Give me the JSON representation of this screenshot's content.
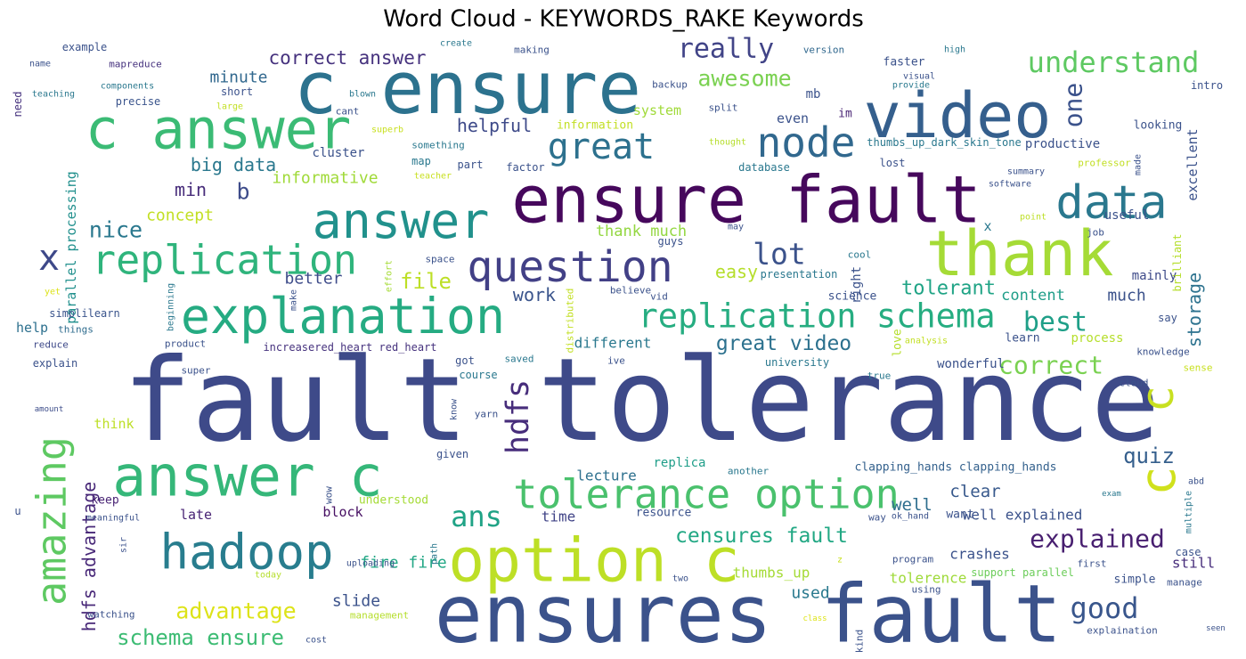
{
  "chart_data": {
    "type": "wordcloud",
    "title": "Word Cloud - KEYWORDS_RAKE Keywords",
    "words": [
      {
        "text": "fault tolerance",
        "color": "#3e4a89"
      },
      {
        "text": "ensures fault",
        "color": "#3b528b"
      },
      {
        "text": "ensure fault",
        "color": "#46085c"
      },
      {
        "text": "c ensure",
        "color": "#2c728e"
      },
      {
        "text": "video",
        "color": "#355f8d"
      },
      {
        "text": "thank",
        "color": "#a5db36"
      },
      {
        "text": "c answer",
        "color": "#3bbb75"
      },
      {
        "text": "answer c",
        "color": "#35b779"
      },
      {
        "text": "option c",
        "color": "#bddf26"
      },
      {
        "text": "explanation",
        "color": "#25ab82"
      },
      {
        "text": "answer",
        "color": "#21918c"
      },
      {
        "text": "replication",
        "color": "#2fb47c"
      },
      {
        "text": "hadoop",
        "color": "#287d8e"
      },
      {
        "text": "question",
        "color": "#424086"
      },
      {
        "text": "data",
        "color": "#2a788e"
      },
      {
        "text": "node",
        "color": "#31688e"
      },
      {
        "text": "great",
        "color": "#2d718e"
      },
      {
        "text": "replication schema",
        "color": "#26ad81"
      },
      {
        "text": "tolerance option",
        "color": "#4ac16d"
      },
      {
        "text": "amazing",
        "color": "#5ec962"
      },
      {
        "text": "hdfs",
        "color": "#472d7b"
      },
      {
        "text": "c",
        "color": "#c8e020"
      },
      {
        "text": "c",
        "color": "#d0e11c"
      },
      {
        "text": "x",
        "color": "#3e4989"
      },
      {
        "text": "lot",
        "color": "#3b528b"
      },
      {
        "text": "really",
        "color": "#414487"
      },
      {
        "text": "understand",
        "color": "#5ec962"
      },
      {
        "text": "one",
        "color": "#3b528b"
      },
      {
        "text": "correct answer",
        "color": "#46327e"
      },
      {
        "text": "awesome",
        "color": "#7ad151"
      },
      {
        "text": "minute",
        "color": "#31688e"
      },
      {
        "text": "helpful",
        "color": "#3e4a89"
      },
      {
        "text": "big data",
        "color": "#2a788e"
      },
      {
        "text": "informative",
        "color": "#a0da39"
      },
      {
        "text": "min",
        "color": "#472c7a"
      },
      {
        "text": "b",
        "color": "#3e4c8a"
      },
      {
        "text": "nice",
        "color": "#2a788e"
      },
      {
        "text": "concept",
        "color": "#c2df23"
      },
      {
        "text": "file",
        "color": "#bddf26"
      },
      {
        "text": "better",
        "color": "#3e4c8a"
      },
      {
        "text": "work",
        "color": "#3a548c"
      },
      {
        "text": "great video",
        "color": "#2c718e"
      },
      {
        "text": "best",
        "color": "#1f9f88"
      },
      {
        "text": "tolerant",
        "color": "#20a486"
      },
      {
        "text": "content",
        "color": "#1f9e89"
      },
      {
        "text": "much",
        "color": "#3b528b"
      },
      {
        "text": "storage",
        "color": "#2c728e"
      },
      {
        "text": "mainly",
        "color": "#3e4a89"
      },
      {
        "text": "correct",
        "color": "#7ad151"
      },
      {
        "text": "easy",
        "color": "#b5de2b"
      },
      {
        "text": "thank much",
        "color": "#93d741"
      },
      {
        "text": "ans",
        "color": "#20a386"
      },
      {
        "text": "quiz",
        "color": "#355f8d"
      },
      {
        "text": "explained",
        "color": "#481f70"
      },
      {
        "text": "well",
        "color": "#2e6e8e"
      },
      {
        "text": "clear",
        "color": "#38598c"
      },
      {
        "text": "well explained",
        "color": "#3b528b"
      },
      {
        "text": "censures fault",
        "color": "#22a884"
      },
      {
        "text": "good",
        "color": "#39568c"
      },
      {
        "text": "crashes",
        "color": "#3b528b"
      },
      {
        "text": "still",
        "color": "#472d7b"
      },
      {
        "text": "tolerence",
        "color": "#9fda3a"
      },
      {
        "text": "thumbs_up",
        "color": "#a5db36"
      },
      {
        "text": "used",
        "color": "#29798e"
      },
      {
        "text": "fire fire",
        "color": "#22a785"
      },
      {
        "text": "slide",
        "color": "#3b528b"
      },
      {
        "text": "advantage",
        "color": "#dde318"
      },
      {
        "text": "schema ensure",
        "color": "#3dbc74"
      },
      {
        "text": "hdfs advantage",
        "color": "#482878"
      },
      {
        "text": "late",
        "color": "#482374"
      },
      {
        "text": "block",
        "color": "#471063"
      },
      {
        "text": "time",
        "color": "#414487"
      },
      {
        "text": "lecture",
        "color": "#2d708e"
      },
      {
        "text": "replica",
        "color": "#1f9e89"
      },
      {
        "text": "clapping_hands clapping_hands",
        "color": "#34618d"
      },
      {
        "text": "resource",
        "color": "#3b528b"
      },
      {
        "text": "different",
        "color": "#2a788e"
      },
      {
        "text": "increasered_heart red_heart",
        "color": "#46327e"
      },
      {
        "text": "help",
        "color": "#2d708e"
      },
      {
        "text": "parallel processing",
        "color": "#21908d"
      },
      {
        "text": "need",
        "color": "#46327e"
      },
      {
        "text": "simplilearn",
        "color": "#3a548c"
      },
      {
        "text": "things",
        "color": "#2f6c8e"
      },
      {
        "text": "reduce",
        "color": "#3e4989"
      },
      {
        "text": "explain",
        "color": "#3b528b"
      },
      {
        "text": "amount",
        "color": "#3d4d8a"
      },
      {
        "text": "name",
        "color": "#3b528b"
      },
      {
        "text": "example",
        "color": "#3b528b"
      },
      {
        "text": "teaching",
        "color": "#2a788e"
      },
      {
        "text": "components",
        "color": "#2a788e"
      },
      {
        "text": "mapreduce",
        "color": "#46327e"
      },
      {
        "text": "precise",
        "color": "#3a548c"
      },
      {
        "text": "short",
        "color": "#3b528b"
      },
      {
        "text": "large",
        "color": "#c2df23"
      },
      {
        "text": "create",
        "color": "#2a788e"
      },
      {
        "text": "making",
        "color": "#3b528b"
      },
      {
        "text": "version",
        "color": "#31688e"
      },
      {
        "text": "high",
        "color": "#2a788e"
      },
      {
        "text": "faster",
        "color": "#3b528b"
      },
      {
        "text": "visual",
        "color": "#3b528b"
      },
      {
        "text": "provide",
        "color": "#29798e"
      },
      {
        "text": "intro",
        "color": "#3b528b"
      },
      {
        "text": "backup",
        "color": "#3b528b"
      },
      {
        "text": "blown",
        "color": "#2a788e"
      },
      {
        "text": "cant",
        "color": "#3b528b"
      },
      {
        "text": "mb",
        "color": "#3b528b"
      },
      {
        "text": "split",
        "color": "#3b528b"
      },
      {
        "text": "im",
        "color": "#482374"
      },
      {
        "text": "system",
        "color": "#a0da39"
      },
      {
        "text": "information",
        "color": "#c2df23"
      },
      {
        "text": "even",
        "color": "#3b528b"
      },
      {
        "text": "looking",
        "color": "#3b528b"
      },
      {
        "text": "superb",
        "color": "#c8e020"
      },
      {
        "text": "something",
        "color": "#2a788e"
      },
      {
        "text": "cluster",
        "color": "#3b528b"
      },
      {
        "text": "map",
        "color": "#2a788e"
      },
      {
        "text": "part",
        "color": "#3b528b"
      },
      {
        "text": "factor",
        "color": "#3b528b"
      },
      {
        "text": "thought",
        "color": "#b5de2b"
      },
      {
        "text": "thumbs_up_dark_skin_tone",
        "color": "#2a788e"
      },
      {
        "text": "productive",
        "color": "#3b528b"
      },
      {
        "text": "lost",
        "color": "#3b528b"
      },
      {
        "text": "database",
        "color": "#2a788e"
      },
      {
        "text": "summary",
        "color": "#3b528b"
      },
      {
        "text": "professor",
        "color": "#c2df23"
      },
      {
        "text": "made",
        "color": "#3b528b"
      },
      {
        "text": "excellent",
        "color": "#3b528b"
      },
      {
        "text": "software",
        "color": "#3b528b"
      },
      {
        "text": "teacher",
        "color": "#c8e020"
      },
      {
        "text": "x",
        "color": "#2a788e"
      },
      {
        "text": "point",
        "color": "#bddf26"
      },
      {
        "text": "useful",
        "color": "#3b528b"
      },
      {
        "text": "may",
        "color": "#3b528b"
      },
      {
        "text": "job",
        "color": "#3b528b"
      },
      {
        "text": "guys",
        "color": "#3b528b"
      },
      {
        "text": "cool",
        "color": "#2a788e"
      },
      {
        "text": "right",
        "color": "#3b528b"
      },
      {
        "text": "brilliant",
        "color": "#b5de2b"
      },
      {
        "text": "space",
        "color": "#3b528b"
      },
      {
        "text": "effort",
        "color": "#a5db36"
      },
      {
        "text": "presentation",
        "color": "#2a788e"
      },
      {
        "text": "yet",
        "color": "#dde318"
      },
      {
        "text": "make",
        "color": "#3b528b"
      },
      {
        "text": "beginning",
        "color": "#2a788e"
      },
      {
        "text": "believe",
        "color": "#3b528b"
      },
      {
        "text": "vid",
        "color": "#3b528b"
      },
      {
        "text": "science",
        "color": "#3b528b"
      },
      {
        "text": "say",
        "color": "#3b528b"
      },
      {
        "text": "distributed",
        "color": "#c2df23"
      },
      {
        "text": "product",
        "color": "#3b528b"
      },
      {
        "text": "love",
        "color": "#b5de2b"
      },
      {
        "text": "analysis",
        "color": "#c2df23"
      },
      {
        "text": "learn",
        "color": "#3b528b"
      },
      {
        "text": "process",
        "color": "#b5de2b"
      },
      {
        "text": "knowledge",
        "color": "#3b528b"
      },
      {
        "text": "got",
        "color": "#3b528b"
      },
      {
        "text": "saved",
        "color": "#2a788e"
      },
      {
        "text": "ive",
        "color": "#3b528b"
      },
      {
        "text": "university",
        "color": "#2a788e"
      },
      {
        "text": "wonderful",
        "color": "#3b528b"
      },
      {
        "text": "super",
        "color": "#3b528b"
      },
      {
        "text": "course",
        "color": "#2a788e"
      },
      {
        "text": "true",
        "color": "#2a788e"
      },
      {
        "text": "sense",
        "color": "#c8e020"
      },
      {
        "text": "cloud",
        "color": "#3b528b"
      },
      {
        "text": "know",
        "color": "#3b528b"
      },
      {
        "text": "yarn",
        "color": "#3b528b"
      },
      {
        "text": "think",
        "color": "#bddf26"
      },
      {
        "text": "given",
        "color": "#3b528b"
      },
      {
        "text": "another",
        "color": "#2a788e"
      },
      {
        "text": "abd",
        "color": "#3b528b"
      },
      {
        "text": "exam",
        "color": "#2a788e"
      },
      {
        "text": "multiple",
        "color": "#2a788e"
      },
      {
        "text": "u",
        "color": "#3b528b"
      },
      {
        "text": "keep",
        "color": "#482374"
      },
      {
        "text": "wow",
        "color": "#3b528b"
      },
      {
        "text": "understood",
        "color": "#a5db36"
      },
      {
        "text": "meaningful",
        "color": "#3b528b"
      },
      {
        "text": "ok_hand",
        "color": "#3b528b"
      },
      {
        "text": "want",
        "color": "#3b528b"
      },
      {
        "text": "way",
        "color": "#3b528b"
      },
      {
        "text": "sir",
        "color": "#3b528b"
      },
      {
        "text": "path",
        "color": "#2a788e"
      },
      {
        "text": "uploading",
        "color": "#3b528b"
      },
      {
        "text": "z",
        "color": "#c8e020"
      },
      {
        "text": "program",
        "color": "#3b528b"
      },
      {
        "text": "case",
        "color": "#3b528b"
      },
      {
        "text": "support parallel",
        "color": "#6ccd5a"
      },
      {
        "text": "first",
        "color": "#3b528b"
      },
      {
        "text": "simple",
        "color": "#3b528b"
      },
      {
        "text": "manage",
        "color": "#3b528b"
      },
      {
        "text": "today",
        "color": "#b5de2b"
      },
      {
        "text": "two",
        "color": "#3b528b"
      },
      {
        "text": "using",
        "color": "#3b528b"
      },
      {
        "text": "watching",
        "color": "#3b528b"
      },
      {
        "text": "management",
        "color": "#b5de2b"
      },
      {
        "text": "class",
        "color": "#dde318"
      },
      {
        "text": "kind",
        "color": "#3b528b"
      },
      {
        "text": "cost",
        "color": "#3b528b"
      },
      {
        "text": "explaination",
        "color": "#3b528b"
      },
      {
        "text": "seen",
        "color": "#3b528b"
      }
    ]
  }
}
